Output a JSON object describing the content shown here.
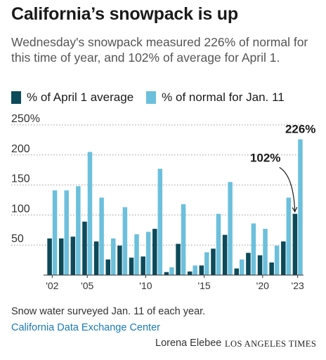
{
  "header": {
    "title": "California’s snowpack is up",
    "subtitle": "Wednesday's snowpack measured 226% of normal for this time of year, and 102% of average for April 1."
  },
  "legend": [
    {
      "label": "% of April 1 average",
      "color": "#0d4a5a"
    },
    {
      "label": "% of normal for Jan. 11",
      "color": "#6cc0dc"
    }
  ],
  "annotations": {
    "normal_2023": "226%",
    "april_2023": "102%"
  },
  "footer": {
    "note": "Snow water surveyed Jan. 11 of each year.",
    "source": "California Data Exchange Center",
    "byline": "Lorena Elebee",
    "brand": "LOS ANGELES TIMES"
  },
  "chart_data": {
    "type": "bar",
    "categories": [
      "2002",
      "2003",
      "2004",
      "2005",
      "2006",
      "2007",
      "2008",
      "2009",
      "2010",
      "2011",
      "2012",
      "2013",
      "2014",
      "2015",
      "2016",
      "2017",
      "2018",
      "2019",
      "2020",
      "2021",
      "2022",
      "2023"
    ],
    "x_tick_labels": [
      {
        "category": "2002",
        "label": "'02"
      },
      {
        "category": "2005",
        "label": "'05"
      },
      {
        "category": "2010",
        "label": "'10"
      },
      {
        "category": "2015",
        "label": "'15"
      },
      {
        "category": "2020",
        "label": "'20"
      },
      {
        "category": "2023",
        "label": "'23"
      }
    ],
    "y_ticks": [
      {
        "value": 50,
        "label": "50"
      },
      {
        "value": 100,
        "label": "100"
      },
      {
        "value": 150,
        "label": "150"
      },
      {
        "value": 200,
        "label": "200"
      },
      {
        "value": 250,
        "label": "250%"
      }
    ],
    "ylim": [
      0,
      250
    ],
    "grid": true,
    "legend_position": "top",
    "series": [
      {
        "name": "% of April 1 average",
        "color": "#0d4a5a",
        "values": [
          61,
          61,
          64,
          89,
          56,
          26,
          49,
          29,
          31,
          77,
          5,
          52,
          6,
          16,
          44,
          67,
          11,
          37,
          33,
          21,
          56,
          102
        ]
      },
      {
        "name": "% of normal for Jan. 11",
        "color": "#6cc0dc",
        "values": [
          141,
          141,
          148,
          205,
          129,
          61,
          113,
          68,
          72,
          177,
          13,
          118,
          16,
          38,
          102,
          155,
          26,
          86,
          77,
          49,
          129,
          226
        ]
      }
    ]
  }
}
